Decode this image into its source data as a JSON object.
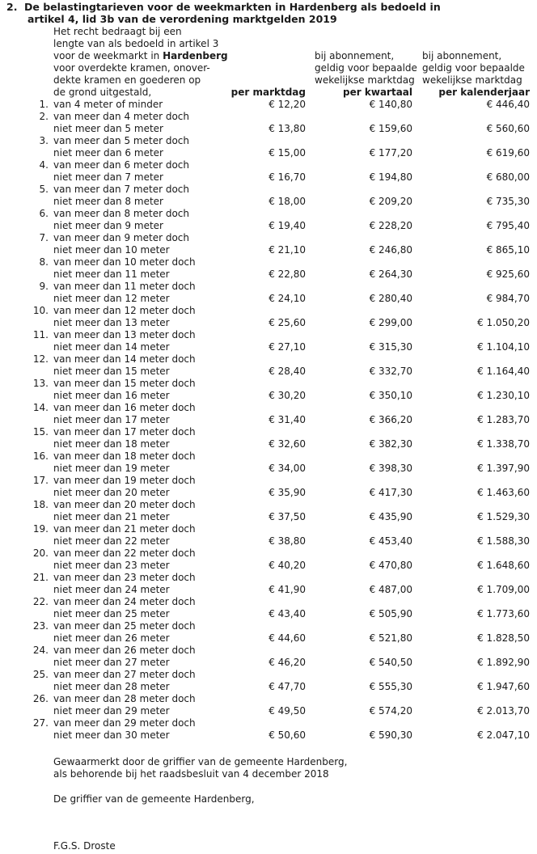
{
  "section": {
    "number": "2.",
    "title_line1": "De belastingtarieven voor de weekmarkten in Hardenberg als bedoeld in",
    "title_line2": "artikel 4, lid 3b van de verordening marktgelden 2019"
  },
  "intro_lines": [
    "Het recht bedraagt bij een",
    "lengte van als bedoeld in artikel 3",
    "voor de weekmarkt in ",
    "voor overdekte kramen, onover-",
    "dekte kramen en goederen op",
    "de grond uitgestald,"
  ],
  "intro_bold_word": "Hardenberg",
  "columns": {
    "col1": {
      "header": "per marktdag"
    },
    "col2": {
      "header_lines": [
        "bij abonnement,",
        "geldig voor bepaalde",
        "wekelijkse marktdag"
      ],
      "header": "per kwartaal"
    },
    "col3": {
      "header_lines": [
        "bij abonnement,",
        "geldig voor bepaalde",
        "wekelijkse marktdag"
      ],
      "header": "per kalenderjaar"
    }
  },
  "rows": [
    {
      "n": "1.",
      "l1": "van 4 meter of minder",
      "l2": "",
      "v": [
        "€ 12,20",
        "€ 140,80",
        "€ 446,40"
      ]
    },
    {
      "n": "2.",
      "l1": "van meer dan 4 meter doch",
      "l2": "niet meer dan 5 meter",
      "v": [
        "€ 13,80",
        "€ 159,60",
        "€ 560,60"
      ]
    },
    {
      "n": "3.",
      "l1": "van meer dan 5 meter doch",
      "l2": "niet meer dan 6 meter",
      "v": [
        "€ 15,00",
        "€ 177,20",
        "€ 619,60"
      ]
    },
    {
      "n": "4.",
      "l1": "van meer dan 6 meter doch",
      "l2": "niet meer dan 7 meter",
      "v": [
        "€ 16,70",
        "€ 194,80",
        "€ 680,00"
      ]
    },
    {
      "n": "5.",
      "l1": "van meer dan 7 meter doch",
      "l2": "niet meer dan 8 meter",
      "v": [
        "€ 18,00",
        "€ 209,20",
        "€ 735,30"
      ]
    },
    {
      "n": "6.",
      "l1": "van meer dan 8 meter doch",
      "l2": "niet meer dan 9 meter",
      "v": [
        "€ 19,40",
        "€ 228,20",
        "€ 795,40"
      ]
    },
    {
      "n": "7.",
      "l1": "van meer dan 9 meter doch",
      "l2": "niet meer dan 10 meter",
      "v": [
        "€ 21,10",
        "€ 246,80",
        "€ 865,10"
      ]
    },
    {
      "n": "8.",
      "l1": "van meer dan 10 meter doch",
      "l2": "niet meer dan 11 meter",
      "v": [
        "€ 22,80",
        "€ 264,30",
        "€ 925,60"
      ]
    },
    {
      "n": "9.",
      "l1": "van meer dan 11 meter doch",
      "l2": "niet meer dan 12 meter",
      "v": [
        "€ 24,10",
        "€ 280,40",
        "€ 984,70"
      ]
    },
    {
      "n": "10.",
      "l1": "van meer dan 12 meter doch",
      "l2": "niet meer dan 13 meter",
      "v": [
        "€ 25,60",
        "€ 299,00",
        "€ 1.050,20"
      ]
    },
    {
      "n": "11.",
      "l1": "van meer dan 13 meter doch",
      "l2": "niet meer dan 14 meter",
      "v": [
        "€ 27,10",
        "€ 315,30",
        "€ 1.104,10"
      ]
    },
    {
      "n": "12.",
      "l1": "van meer dan 14 meter doch",
      "l2": "niet meer dan 15 meter",
      "v": [
        "€ 28,40",
        "€ 332,70",
        "€ 1.164,40"
      ]
    },
    {
      "n": "13.",
      "l1": "van meer dan 15 meter doch",
      "l2": "niet meer dan 16 meter",
      "v": [
        "€ 30,20",
        "€ 350,10",
        "€ 1.230,10"
      ]
    },
    {
      "n": "14.",
      "l1": "van meer dan 16 meter doch",
      "l2": "niet meer dan 17 meter",
      "v": [
        "€ 31,40",
        "€ 366,20",
        "€ 1.283,70"
      ]
    },
    {
      "n": "15.",
      "l1": "van meer dan 17 meter doch",
      "l2": "niet meer dan 18 meter",
      "v": [
        "€ 32,60",
        "€ 382,30",
        "€ 1.338,70"
      ]
    },
    {
      "n": "16.",
      "l1": "van meer dan 18 meter doch",
      "l2": "niet meer dan 19 meter",
      "v": [
        "€ 34,00",
        "€ 398,30",
        "€ 1.397,90"
      ]
    },
    {
      "n": "17.",
      "l1": "van meer dan 19 meter doch",
      "l2": "niet meer dan 20 meter",
      "v": [
        "€ 35,90",
        "€ 417,30",
        "€ 1.463,60"
      ]
    },
    {
      "n": "18.",
      "l1": "van meer dan 20 meter doch",
      "l2": "niet meer dan 21 meter",
      "v": [
        "€ 37,50",
        "€ 435,90",
        "€ 1.529,30"
      ]
    },
    {
      "n": "19.",
      "l1": "van meer dan 21 meter doch",
      "l2": "niet meer dan 22 meter",
      "v": [
        "€ 38,80",
        "€ 453,40",
        "€ 1.588,30"
      ]
    },
    {
      "n": "20.",
      "l1": "van meer dan 22 meter doch",
      "l2": "niet meer dan 23 meter",
      "v": [
        "€ 40,20",
        "€ 470,80",
        "€ 1.648,60"
      ]
    },
    {
      "n": "21.",
      "l1": "van meer dan 23 meter doch",
      "l2": "niet meer dan 24 meter",
      "v": [
        "€ 41,90",
        "€ 487,00",
        "€ 1.709,00"
      ]
    },
    {
      "n": "22.",
      "l1": "van meer dan 24 meter doch",
      "l2": "niet meer dan 25 meter",
      "v": [
        "€ 43,40",
        "€ 505,90",
        "€ 1.773,60"
      ]
    },
    {
      "n": "23.",
      "l1": "van meer dan 25 meter doch",
      "l2": "niet meer dan 26 meter",
      "v": [
        "€ 44,60",
        "€ 521,80",
        "€ 1.828,50"
      ]
    },
    {
      "n": "24.",
      "l1": "van meer dan 26 meter doch",
      "l2": "niet meer dan 27 meter",
      "v": [
        "€ 46,20",
        "€ 540,50",
        "€ 1.892,90"
      ]
    },
    {
      "n": "25.",
      "l1": "van meer dan 27 meter doch",
      "l2": "niet meer dan 28 meter",
      "v": [
        "€ 47,70",
        "€ 555,30",
        "€ 1.947,60"
      ]
    },
    {
      "n": "26.",
      "l1": "van meer dan 28 meter doch",
      "l2": "niet meer dan 29 meter",
      "v": [
        "€ 49,50",
        "€ 574,20",
        "€ 2.013,70"
      ]
    },
    {
      "n": "27.",
      "l1": "van meer dan 29 meter doch",
      "l2": "niet meer dan 30 meter",
      "v": [
        "€ 50,60",
        "€ 590,30",
        "€ 2.047,10"
      ]
    }
  ],
  "footer": {
    "line1": "Gewaarmerkt door de griffier van de gemeente Hardenberg,",
    "line2": "als behorende bij het raadsbesluit van 4 december 2018",
    "line3": "De griffier van de gemeente Hardenberg,",
    "signature": "F.G.S. Droste"
  }
}
